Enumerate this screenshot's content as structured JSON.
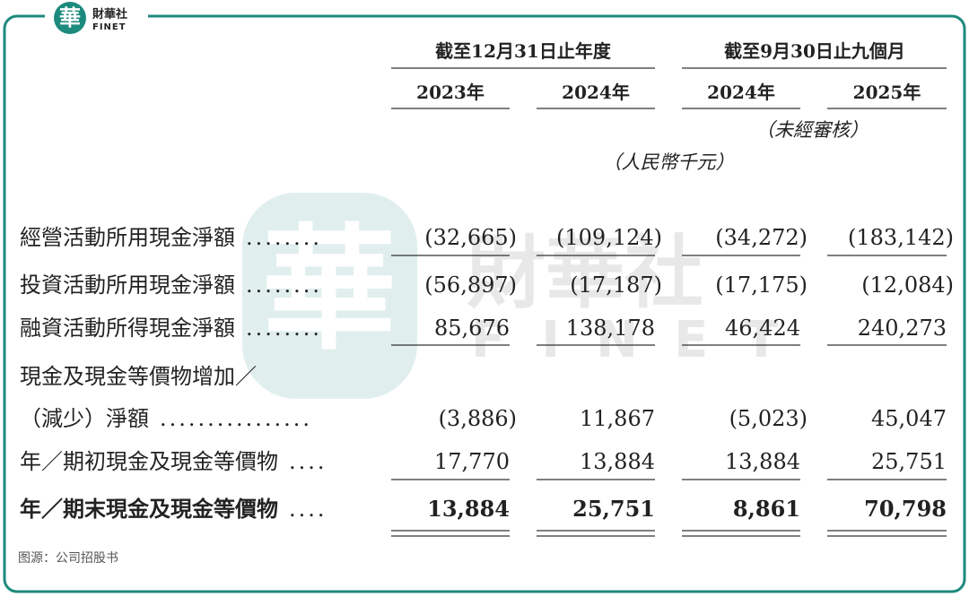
{
  "logo": {
    "mark": "華",
    "name": "財華社",
    "latin": "FINET"
  },
  "watermark": {
    "mark": "華",
    "name": "財華社",
    "latin": "FINET"
  },
  "table": {
    "groups": [
      "截至12月31日止年度",
      "截至9月30日止九個月"
    ],
    "years": [
      "2023年",
      "2024年",
      "2024年",
      "2025年"
    ],
    "unaudited": "（未經審核）",
    "unit": "（人民幣千元）",
    "rows": [
      {
        "label": [
          "經營活動所用現金淨額"
        ],
        "leader": "........",
        "values": [
          "(32,665)",
          "(109,124)",
          "(34,272)",
          "(183,142)"
        ]
      },
      {
        "label": [
          "投資活動所用現金淨額"
        ],
        "leader": "........",
        "values": [
          "(56,897)",
          "(17,187)",
          "(17,175)",
          "(12,084)"
        ]
      },
      {
        "label": [
          "融資活動所得現金淨額"
        ],
        "leader": "........",
        "values": [
          "85,676",
          "138,178",
          "46,424",
          "240,273"
        ]
      },
      {
        "label": [
          "現金及現金等價物增加／",
          "（減少）淨額"
        ],
        "leader": "................",
        "values": [
          "(3,886)",
          "11,867",
          "(5,023)",
          "45,047"
        ]
      },
      {
        "label": [
          "年／期初現金及現金等價物"
        ],
        "leader": "....",
        "values": [
          "17,770",
          "13,884",
          "13,884",
          "25,751"
        ]
      },
      {
        "label": [
          "年／期末現金及現金等價物"
        ],
        "leader": "....",
        "values": [
          "13,884",
          "25,751",
          "8,861",
          "70,798"
        ]
      }
    ]
  },
  "source": "图源：公司招股书"
}
